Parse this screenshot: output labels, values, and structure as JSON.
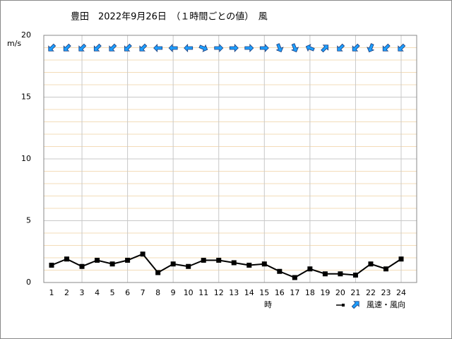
{
  "chart_data": {
    "type": "line",
    "title": "豊田　2022年9月26日　（１時間ごとの値）　風",
    "y_unit": "m/s",
    "x_label": "時",
    "legend": "風速・風向",
    "categories": [
      1,
      2,
      3,
      4,
      5,
      6,
      7,
      8,
      9,
      10,
      11,
      12,
      13,
      14,
      15,
      16,
      17,
      18,
      19,
      20,
      21,
      22,
      23,
      24
    ],
    "series": [
      {
        "name": "風速",
        "color": "#000000",
        "values": [
          1.4,
          1.9,
          1.3,
          1.8,
          1.5,
          1.8,
          2.3,
          0.8,
          1.5,
          1.3,
          1.8,
          1.8,
          1.6,
          1.4,
          1.5,
          0.9,
          0.4,
          1.1,
          0.7,
          0.7,
          0.6,
          1.5,
          1.1,
          1.9
        ]
      }
    ],
    "direction": {
      "name": "風向",
      "color": "#1e9fff",
      "values": [
        225,
        225,
        225,
        225,
        225,
        225,
        225,
        270,
        270,
        270,
        112.5,
        90,
        90,
        90,
        90,
        157.5,
        157.5,
        292.5,
        45,
        225,
        225,
        202.5,
        225,
        225
      ]
    },
    "ylim": [
      0,
      20
    ],
    "yticks": [
      0,
      5,
      10,
      15,
      20
    ],
    "grid": true
  }
}
